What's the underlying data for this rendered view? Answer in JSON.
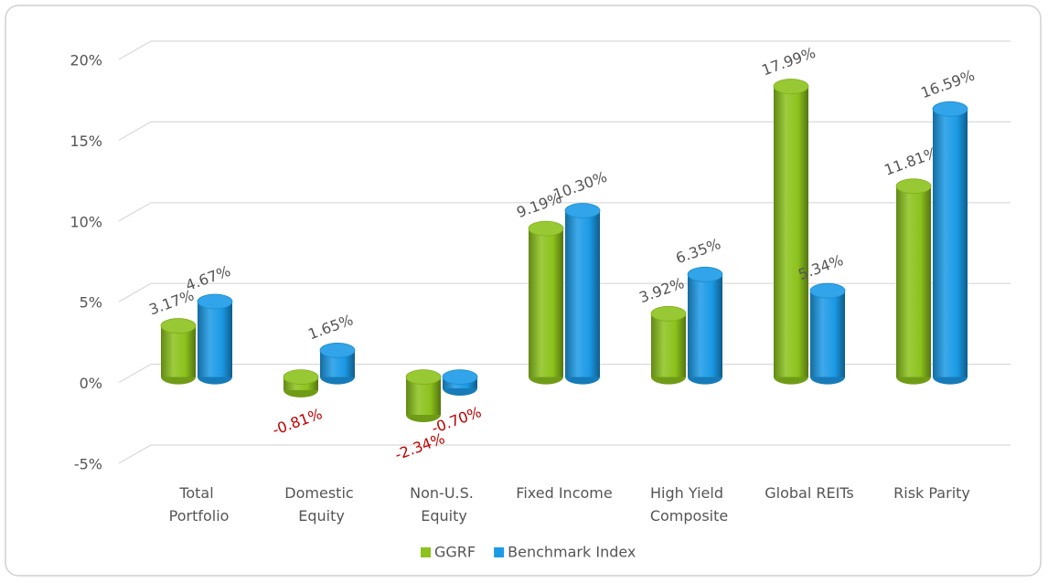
{
  "chart_data": {
    "type": "bar3d",
    "categories": [
      "Total Portfolio",
      "Domestic Equity",
      "Non-U.S. Equity",
      "Fixed Income",
      "High Yield Composite",
      "Global REITs",
      "Risk Parity"
    ],
    "series": [
      {
        "name": "GGRF",
        "color": "#8cc21c",
        "values": [
          3.17,
          -0.81,
          -2.34,
          9.19,
          3.92,
          17.99,
          11.81
        ],
        "value_labels": [
          "3.17%",
          "-0.81%",
          "-2.34%",
          "9.19%",
          "3.92%",
          "17.99%",
          "11.81%"
        ]
      },
      {
        "name": "Benchmark Index",
        "color": "#1b9ae6",
        "values": [
          4.67,
          1.65,
          -0.7,
          10.3,
          6.35,
          5.34,
          16.59
        ],
        "value_labels": [
          "4.67%",
          "1.65%",
          "-0.70%",
          "10.30%",
          "6.35%",
          "5.34%",
          "16.59%"
        ]
      }
    ],
    "ylim": [
      -5,
      20
    ],
    "yticks": [
      {
        "value": -5,
        "label": "-5%"
      },
      {
        "value": 0,
        "label": "0%"
      },
      {
        "value": 5,
        "label": "5%"
      },
      {
        "value": 10,
        "label": "10%"
      },
      {
        "value": 15,
        "label": "15%"
      },
      {
        "value": 20,
        "label": "20%"
      }
    ],
    "grid": true,
    "legend": "bottom",
    "negative_label_color": "#c00000"
  }
}
